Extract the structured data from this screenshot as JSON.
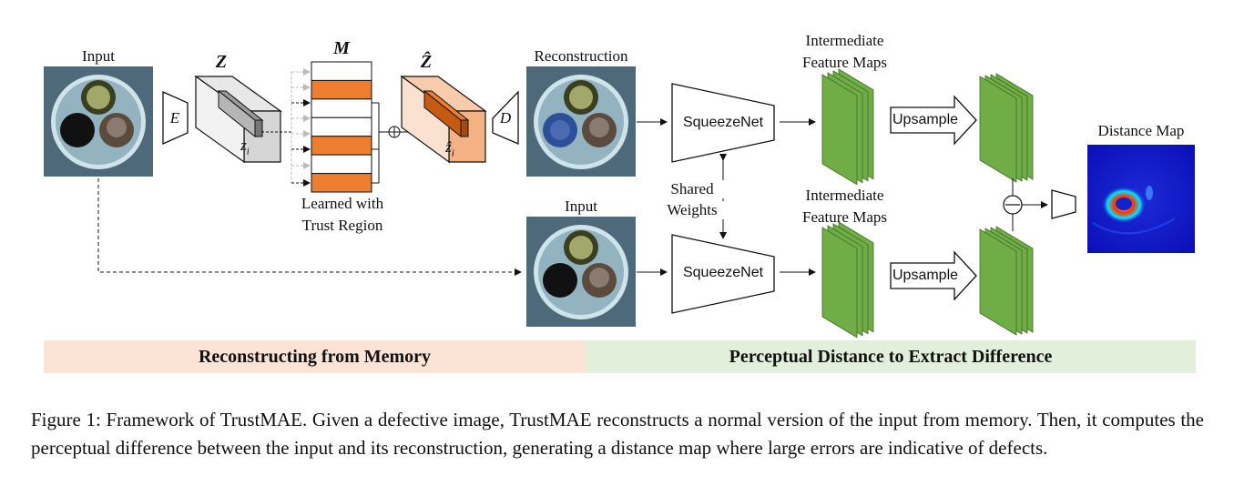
{
  "labels": {
    "input_top": "Input",
    "z": "Z",
    "m": "M",
    "z_hat": "Ẑ",
    "reconstruction": "Reconstruction",
    "intermediate_top_1": "Intermediate",
    "intermediate_top_2": "Feature Maps",
    "distance_map": "Distance Map",
    "encoder": "E",
    "decoder": "D",
    "z_i": "z",
    "z_i_sub": "i",
    "z_hat_i": "ẑ",
    "z_hat_i_sub": "i",
    "learned_1": "Learned with",
    "learned_2": "Trust Region",
    "squeezenet_top": "SqueezeNet",
    "squeezenet_bottom": "SqueezeNet",
    "upsample_top": "Upsample",
    "upsample_bottom": "Upsample",
    "shared_1": "Shared",
    "shared_2": "Weights",
    "input_bottom": "Input",
    "intermediate_bottom_1": "Intermediate",
    "intermediate_bottom_2": "Feature Maps"
  },
  "bands": {
    "left": "Reconstructing from Memory",
    "right": "Perceptual Distance to Extract Difference"
  },
  "caption": "Figure 1: Framework of TrustMAE. Given a defective image, TrustMAE reconstructs a normal version of the input from memory. Then, it computes the perceptual difference between the input and its reconstruction, generating a distance map where large errors are indicative of defects.",
  "colors": {
    "memory_orange": "#ed7d31",
    "band_left": "#fbe3d6",
    "band_right": "#e2efda",
    "feature_green": "#70ad47",
    "zhat_fill": "#f8cbad"
  },
  "memory_slots": [
    "empty",
    "orange",
    "empty",
    "empty",
    "orange",
    "empty",
    "orange"
  ]
}
